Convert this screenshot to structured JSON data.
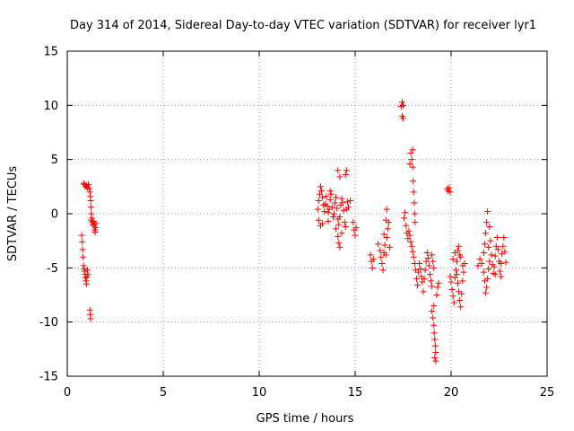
{
  "chart_data": {
    "type": "scatter",
    "title": "Day 314 of 2014, Sidereal Day-to-day VTEC variation (SDTVAR) for receiver lyr1",
    "xlabel": "GPS time / hours",
    "ylabel": "SDTVAR / TECUs",
    "xlim": [
      0,
      25
    ],
    "ylim": [
      -15,
      15
    ],
    "xticks": [
      0,
      5,
      10,
      15,
      20,
      25
    ],
    "yticks": [
      -15,
      -10,
      -5,
      0,
      5,
      10,
      15
    ],
    "grid": true,
    "marker": "+",
    "colors": {
      "points": "#ff0000",
      "axes": "#000000",
      "grid": "#a0a0a0"
    },
    "series": [
      {
        "name": "SDTVAR",
        "points": [
          [
            0.75,
            -2.0
          ],
          [
            0.78,
            -2.6
          ],
          [
            0.8,
            -3.3
          ],
          [
            0.82,
            -4.0
          ],
          [
            0.85,
            -4.8
          ],
          [
            0.88,
            -5.1
          ],
          [
            0.9,
            -5.3
          ],
          [
            0.93,
            -5.6
          ],
          [
            0.95,
            -5.9
          ],
          [
            0.98,
            -6.2
          ],
          [
            1.0,
            -6.5
          ],
          [
            1.03,
            -5.8
          ],
          [
            1.05,
            -5.2
          ],
          [
            1.08,
            -5.6
          ],
          [
            0.85,
            2.8
          ],
          [
            0.9,
            2.7
          ],
          [
            0.95,
            2.5
          ],
          [
            1.0,
            2.6
          ],
          [
            1.05,
            2.4
          ],
          [
            1.1,
            2.7
          ],
          [
            1.15,
            2.3
          ],
          [
            1.18,
            2.0
          ],
          [
            1.2,
            1.6
          ],
          [
            1.22,
            1.2
          ],
          [
            1.24,
            0.6
          ],
          [
            1.26,
            0.0
          ],
          [
            1.28,
            -0.4
          ],
          [
            1.3,
            -0.8
          ],
          [
            1.33,
            -1.0
          ],
          [
            1.36,
            -0.7
          ],
          [
            1.4,
            -1.1
          ],
          [
            1.43,
            -1.5
          ],
          [
            1.45,
            -1.7
          ],
          [
            1.48,
            -1.3
          ],
          [
            1.5,
            -0.9
          ],
          [
            1.25,
            -0.6
          ],
          [
            1.18,
            -8.9
          ],
          [
            1.2,
            -9.3
          ],
          [
            1.22,
            -9.7
          ],
          [
            13.05,
            0.4
          ],
          [
            13.1,
            1.2
          ],
          [
            13.15,
            1.8
          ],
          [
            13.2,
            2.5
          ],
          [
            13.25,
            2.1
          ],
          [
            13.3,
            1.5
          ],
          [
            13.35,
            0.8
          ],
          [
            13.4,
            0.2
          ],
          [
            13.1,
            -0.6
          ],
          [
            13.2,
            -1.1
          ],
          [
            13.3,
            -0.9
          ],
          [
            13.45,
            0.9
          ],
          [
            13.5,
            1.6
          ],
          [
            13.55,
            0.7
          ],
          [
            13.6,
            0.1
          ],
          [
            13.65,
            0.4
          ],
          [
            13.7,
            1.3
          ],
          [
            13.75,
            1.8
          ],
          [
            13.8,
            0.6
          ],
          [
            13.85,
            -0.3
          ],
          [
            13.9,
            0.0
          ],
          [
            13.95,
            1.0
          ],
          [
            14.0,
            1.5
          ],
          [
            14.05,
            0.5
          ],
          [
            14.1,
            -0.5
          ],
          [
            14.15,
            -1.0
          ],
          [
            14.2,
            -0.3
          ],
          [
            14.25,
            0.8
          ],
          [
            14.3,
            1.4
          ],
          [
            14.35,
            1.0
          ],
          [
            14.4,
            0.3
          ],
          [
            14.45,
            -0.8
          ],
          [
            14.5,
            -1.2
          ],
          [
            14.55,
            0.4
          ],
          [
            14.6,
            1.1
          ],
          [
            14.65,
            0.6
          ],
          [
            13.7,
            2.1
          ],
          [
            14.0,
            -1.4
          ],
          [
            14.1,
            -2.1
          ],
          [
            14.15,
            -2.7
          ],
          [
            14.2,
            -3.1
          ],
          [
            14.1,
            4.0
          ],
          [
            14.2,
            3.4
          ],
          [
            14.5,
            3.6
          ],
          [
            14.55,
            4.0
          ],
          [
            14.9,
            -0.8
          ],
          [
            14.95,
            -1.5
          ],
          [
            15.0,
            -2.0
          ],
          [
            15.05,
            -1.3
          ],
          [
            14.3,
            -1.8
          ],
          [
            14.75,
            1.2
          ],
          [
            13.6,
            -0.7
          ],
          [
            15.8,
            -3.8
          ],
          [
            15.85,
            -4.4
          ],
          [
            15.9,
            -5.0
          ],
          [
            15.95,
            -4.2
          ],
          [
            16.2,
            -2.8
          ],
          [
            16.3,
            -3.4
          ],
          [
            16.35,
            -4.0
          ],
          [
            16.4,
            -4.6
          ],
          [
            16.45,
            -5.2
          ],
          [
            16.5,
            -3.6
          ],
          [
            16.55,
            -2.9
          ],
          [
            16.6,
            -3.8
          ],
          [
            16.65,
            -2.2
          ],
          [
            16.7,
            -1.4
          ],
          [
            16.6,
            -0.6
          ],
          [
            16.65,
            0.4
          ],
          [
            16.75,
            -0.8
          ],
          [
            16.5,
            -1.9
          ],
          [
            16.8,
            -3.1
          ],
          [
            17.4,
            9.9
          ],
          [
            17.45,
            10.3
          ],
          [
            17.5,
            10.0
          ],
          [
            17.45,
            9.0
          ],
          [
            17.5,
            8.8
          ],
          [
            17.55,
            -0.4
          ],
          [
            17.6,
            0.1
          ],
          [
            17.65,
            -1.1
          ],
          [
            17.7,
            -1.8
          ],
          [
            17.75,
            -2.3
          ],
          [
            17.8,
            -1.6
          ],
          [
            17.85,
            -2.0
          ],
          [
            17.9,
            -2.6
          ],
          [
            17.95,
            -3.0
          ],
          [
            18.0,
            -3.5
          ],
          [
            18.05,
            -4.0
          ],
          [
            18.1,
            -4.6
          ],
          [
            18.15,
            -5.2
          ],
          [
            18.2,
            -6.0
          ],
          [
            18.25,
            -6.6
          ],
          [
            18.3,
            -5.4
          ],
          [
            18.35,
            -4.6
          ],
          [
            18.4,
            -5.1
          ],
          [
            18.45,
            -5.8
          ],
          [
            18.5,
            -6.3
          ],
          [
            18.55,
            -7.2
          ],
          [
            18.6,
            -6.0
          ],
          [
            18.65,
            -5.2
          ],
          [
            18.7,
            -4.4
          ],
          [
            18.75,
            -3.6
          ],
          [
            18.8,
            -4.1
          ],
          [
            18.85,
            -4.8
          ],
          [
            18.9,
            -5.6
          ],
          [
            18.95,
            -6.2
          ],
          [
            19.0,
            -6.7
          ],
          [
            17.9,
            5.6
          ],
          [
            17.95,
            5.0
          ],
          [
            18.0,
            4.3
          ],
          [
            18.02,
            3.0
          ],
          [
            18.05,
            2.0
          ],
          [
            18.08,
            1.0
          ],
          [
            18.1,
            0.0
          ],
          [
            18.12,
            -0.8
          ],
          [
            17.85,
            4.6
          ],
          [
            18.0,
            5.9
          ],
          [
            19.0,
            -3.8
          ],
          [
            19.05,
            -4.4
          ],
          [
            19.1,
            -5.0
          ],
          [
            19.0,
            -9.0
          ],
          [
            19.05,
            -9.6
          ],
          [
            19.1,
            -10.3
          ],
          [
            19.12,
            -11.0
          ],
          [
            19.15,
            -11.6
          ],
          [
            19.18,
            -12.2
          ],
          [
            19.2,
            -12.8
          ],
          [
            19.15,
            -13.3
          ],
          [
            19.2,
            -13.6
          ],
          [
            19.1,
            -8.5
          ],
          [
            19.25,
            -7.5
          ],
          [
            19.3,
            -6.8
          ],
          [
            19.35,
            -6.4
          ],
          [
            19.8,
            2.3
          ],
          [
            19.85,
            2.1
          ],
          [
            19.9,
            2.4
          ],
          [
            19.95,
            2.0
          ],
          [
            19.95,
            -5.8
          ],
          [
            20.0,
            -6.3
          ],
          [
            20.05,
            -7.0
          ],
          [
            20.1,
            -7.6
          ],
          [
            20.15,
            -8.2
          ],
          [
            20.2,
            -5.9
          ],
          [
            20.25,
            -5.2
          ],
          [
            20.3,
            -5.6
          ],
          [
            20.35,
            -6.4
          ],
          [
            20.4,
            -7.2
          ],
          [
            20.45,
            -8.0
          ],
          [
            20.5,
            -8.6
          ],
          [
            20.55,
            -7.4
          ],
          [
            20.6,
            -6.2
          ],
          [
            20.65,
            -5.4
          ],
          [
            20.7,
            -4.6
          ],
          [
            20.35,
            -3.4
          ],
          [
            20.4,
            -3.0
          ],
          [
            20.5,
            -4.0
          ],
          [
            20.6,
            -4.8
          ],
          [
            20.1,
            -4.2
          ],
          [
            20.2,
            -3.6
          ],
          [
            20.3,
            -4.4
          ],
          [
            20.45,
            -3.8
          ],
          [
            21.4,
            -4.8
          ],
          [
            21.5,
            -4.2
          ],
          [
            21.6,
            -4.6
          ],
          [
            21.7,
            -5.4
          ],
          [
            21.75,
            -6.2
          ],
          [
            21.8,
            -7.3
          ],
          [
            21.85,
            -6.8
          ],
          [
            21.9,
            -6.0
          ],
          [
            21.95,
            -5.1
          ],
          [
            21.7,
            -3.6
          ],
          [
            21.75,
            -2.8
          ],
          [
            21.8,
            -1.8
          ],
          [
            21.85,
            -0.8
          ],
          [
            21.9,
            0.2
          ],
          [
            22.0,
            -1.2
          ],
          [
            22.05,
            -2.5
          ],
          [
            22.1,
            -3.8
          ],
          [
            22.15,
            -4.7
          ],
          [
            22.2,
            -5.5
          ],
          [
            22.25,
            -4.9
          ],
          [
            22.3,
            -3.9
          ],
          [
            22.35,
            -3.0
          ],
          [
            22.4,
            -2.2
          ],
          [
            22.45,
            -3.3
          ],
          [
            22.5,
            -4.4
          ],
          [
            22.55,
            -5.3
          ],
          [
            22.6,
            -4.6
          ],
          [
            22.65,
            -3.7
          ],
          [
            22.7,
            -3.0
          ],
          [
            22.75,
            -2.2
          ],
          [
            22.8,
            -3.5
          ],
          [
            22.85,
            -4.5
          ],
          [
            22.6,
            -5.8
          ],
          [
            22.3,
            -5.6
          ],
          [
            22.0,
            -4.4
          ],
          [
            21.95,
            -3.1
          ]
        ]
      }
    ]
  }
}
